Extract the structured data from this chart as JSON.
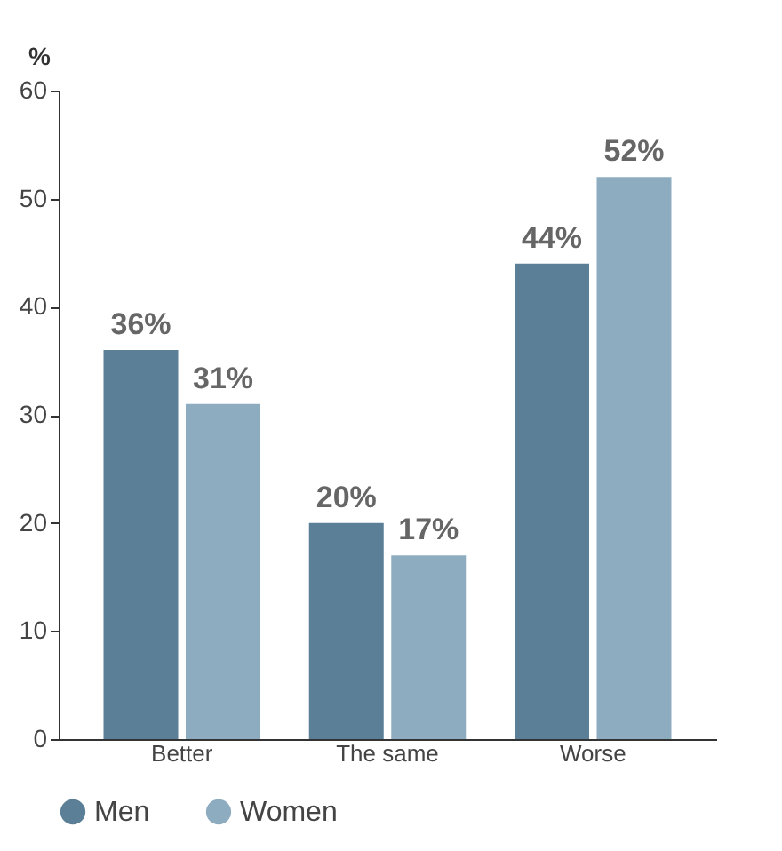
{
  "chart_data": {
    "type": "bar",
    "ylabel": "%",
    "categories": [
      "Better",
      "The same",
      "Worse"
    ],
    "series": [
      {
        "name": "Men",
        "color": "#5a7f96",
        "values": [
          36,
          20,
          44
        ],
        "value_labels": [
          "36%",
          "20%",
          "44%"
        ]
      },
      {
        "name": "Women",
        "color": "#8eacc0",
        "values": [
          31,
          17,
          52
        ],
        "value_labels": [
          "31%",
          "17%",
          "52%"
        ]
      }
    ],
    "ylim": [
      0,
      60
    ],
    "yticks": [
      0,
      10,
      20,
      30,
      40,
      50,
      60
    ],
    "grid": false,
    "legend": "bottom left"
  }
}
